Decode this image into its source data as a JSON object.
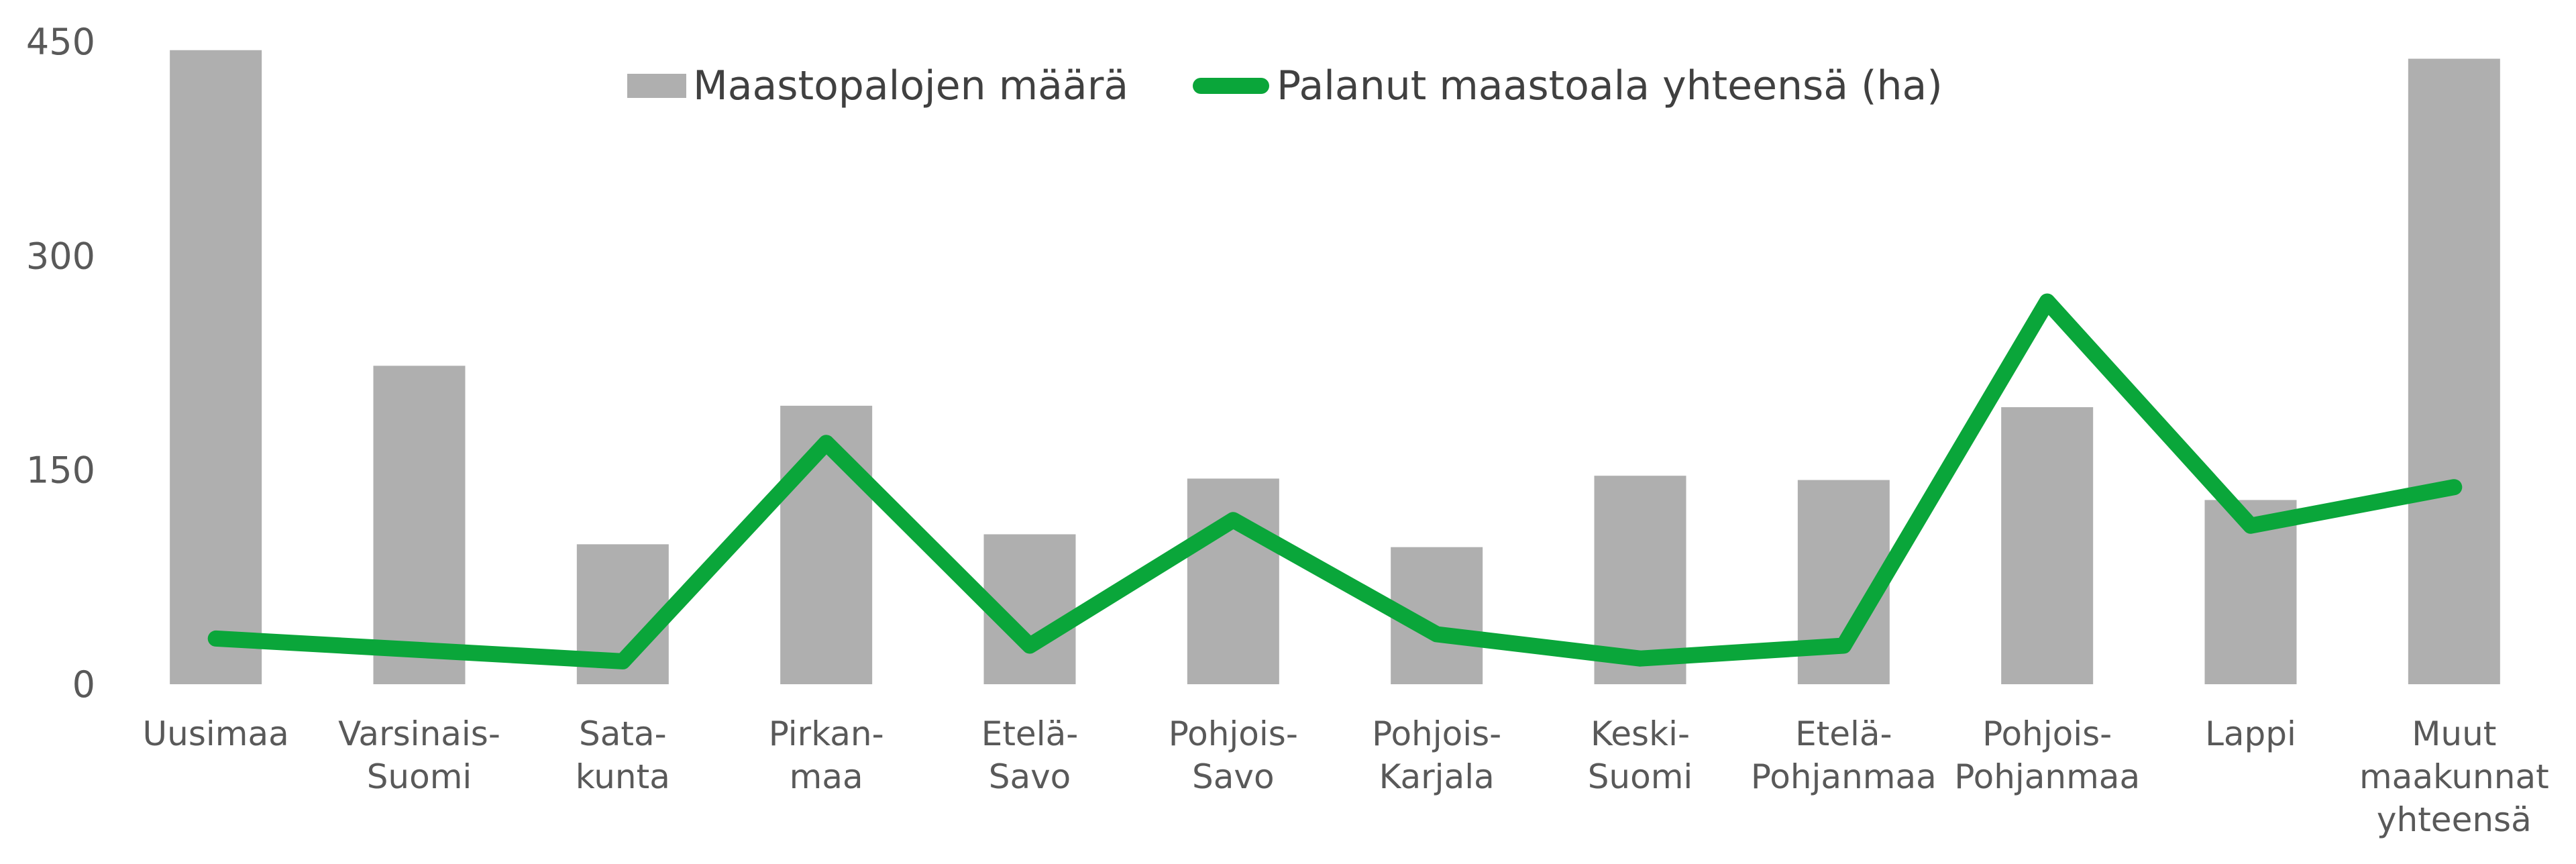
{
  "chart_data": {
    "type": "bar+line",
    "categories": [
      [
        "Uusimaa"
      ],
      [
        "Varsinais-",
        "Suomi"
      ],
      [
        "Sata-",
        "kunta"
      ],
      [
        "Pirkan-",
        "maa"
      ],
      [
        "Etelä-",
        "Savo"
      ],
      [
        "Pohjois-",
        "Savo"
      ],
      [
        "Pohjois-",
        "Karjala"
      ],
      [
        "Keski-",
        "Suomi"
      ],
      [
        "Etelä-",
        "Pohjanmaa"
      ],
      [
        "Pohjois-",
        "Pohjanmaa"
      ],
      [
        "Lappi"
      ],
      [
        "Muut",
        "maakunnat",
        "yhteensä"
      ]
    ],
    "series": [
      {
        "name": "Maastopalojen määrä",
        "type": "bar",
        "color": "#afafaf",
        "values": [
          444,
          223,
          98,
          195,
          105,
          144,
          96,
          146,
          143,
          194,
          129,
          438
        ]
      },
      {
        "name": "Palanut maastoala yhteensä (ha)",
        "type": "line",
        "color": "#0aa63a",
        "values": [
          32,
          24,
          16,
          169,
          27,
          115,
          35,
          18,
          27,
          268,
          111,
          138
        ]
      }
    ],
    "yticks": [
      "0",
      "150",
      "300",
      "450"
    ],
    "ylim": [
      0,
      450
    ],
    "grid": false,
    "legend_position": "top-center"
  }
}
